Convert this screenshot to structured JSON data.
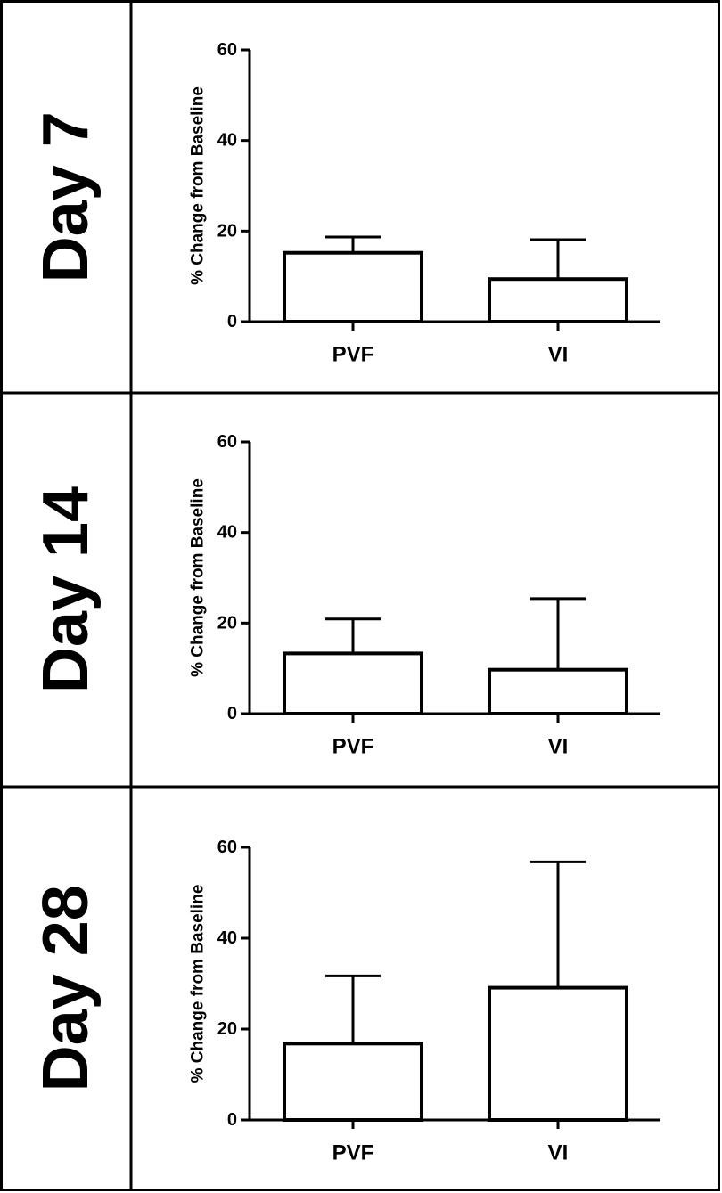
{
  "chart_data": [
    {
      "type": "bar",
      "panel_label": "Day 7",
      "categories": [
        "PVF",
        "VI"
      ],
      "values": [
        15.2,
        9.4
      ],
      "error_upper": [
        18.7,
        18.1
      ],
      "ylabel": "% Change from Baseline",
      "ylim": [
        0,
        60
      ],
      "yticks": [
        0,
        20,
        40,
        60
      ]
    },
    {
      "type": "bar",
      "panel_label": "Day 14",
      "categories": [
        "PVF",
        "VI"
      ],
      "values": [
        13.3,
        9.7
      ],
      "error_upper": [
        20.9,
        25.4
      ],
      "ylabel": "% Change from Baseline",
      "ylim": [
        0,
        60
      ],
      "yticks": [
        0,
        20,
        40,
        60
      ]
    },
    {
      "type": "bar",
      "panel_label": "Day 28",
      "categories": [
        "PVF",
        "VI"
      ],
      "values": [
        16.8,
        29.1
      ],
      "error_upper": [
        31.7,
        56.8
      ],
      "ylabel": "% Change from Baseline",
      "ylim": [
        0,
        60
      ],
      "yticks": [
        0,
        20,
        40,
        60
      ]
    }
  ]
}
